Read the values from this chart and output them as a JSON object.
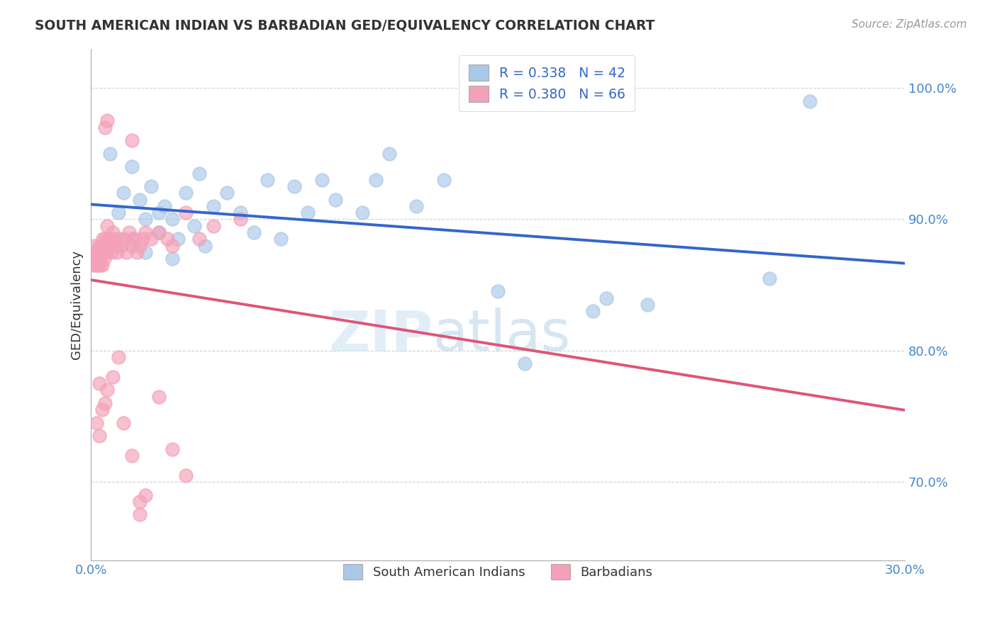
{
  "title": "SOUTH AMERICAN INDIAN VS BARBADIAN GED/EQUIVALENCY CORRELATION CHART",
  "source": "Source: ZipAtlas.com",
  "ylabel": "GED/Equivalency",
  "xlim": [
    0.0,
    30.0
  ],
  "ylim": [
    64.0,
    103.0
  ],
  "xtick_positions": [
    0.0,
    10.0,
    20.0,
    30.0
  ],
  "xtick_labels": [
    "0.0%",
    "",
    "",
    "30.0%"
  ],
  "ytick_positions": [
    70.0,
    80.0,
    90.0,
    100.0
  ],
  "ytick_labels": [
    "70.0%",
    "80.0%",
    "90.0%",
    "100.0%"
  ],
  "legend_line1": "R = 0.338   N = 42",
  "legend_line2": "R = 0.380   N = 66",
  "legend_label_blue": "South American Indians",
  "legend_label_pink": "Barbadians",
  "blue_color": "#aac8e8",
  "pink_color": "#f4a0b8",
  "blue_line_color": "#3366cc",
  "pink_line_color": "#dd5577",
  "watermark_zip": "ZIP",
  "watermark_atlas": "atlas",
  "blue_scatter_x": [
    0.3,
    0.7,
    1.2,
    1.5,
    1.8,
    2.0,
    2.2,
    2.5,
    2.7,
    3.0,
    3.2,
    3.5,
    3.8,
    4.0,
    4.2,
    4.5,
    5.0,
    5.5,
    6.0,
    6.5,
    7.0,
    7.5,
    8.0,
    8.5,
    9.0,
    10.0,
    10.5,
    11.0,
    12.0,
    13.0,
    2.0,
    2.5,
    3.0,
    1.0,
    1.5,
    15.0,
    16.0,
    18.5,
    19.0,
    20.5,
    25.0,
    26.5
  ],
  "blue_scatter_y": [
    88.0,
    95.0,
    92.0,
    94.0,
    91.5,
    90.0,
    92.5,
    90.5,
    91.0,
    90.0,
    88.5,
    92.0,
    89.5,
    93.5,
    88.0,
    91.0,
    92.0,
    90.5,
    89.0,
    93.0,
    88.5,
    92.5,
    90.5,
    93.0,
    91.5,
    90.5,
    93.0,
    95.0,
    91.0,
    93.0,
    87.5,
    89.0,
    87.0,
    90.5,
    88.5,
    84.5,
    79.0,
    83.0,
    84.0,
    83.5,
    85.5,
    99.0
  ],
  "pink_scatter_x": [
    0.05,
    0.08,
    0.1,
    0.12,
    0.15,
    0.18,
    0.2,
    0.22,
    0.25,
    0.28,
    0.3,
    0.32,
    0.35,
    0.38,
    0.4,
    0.42,
    0.45,
    0.48,
    0.5,
    0.55,
    0.6,
    0.65,
    0.7,
    0.75,
    0.8,
    0.85,
    0.9,
    0.95,
    1.0,
    1.1,
    1.2,
    1.3,
    1.4,
    1.5,
    1.6,
    1.7,
    1.8,
    1.9,
    2.0,
    2.2,
    2.5,
    2.8,
    3.0,
    3.5,
    4.0,
    4.5,
    0.5,
    0.6,
    1.5,
    5.5,
    0.2,
    0.3,
    0.4,
    0.6,
    0.8,
    1.0,
    1.2,
    1.5,
    1.8,
    2.0,
    2.5,
    3.0,
    3.5,
    0.3,
    0.5,
    1.8
  ],
  "pink_scatter_y": [
    87.5,
    87.0,
    86.5,
    88.0,
    87.0,
    86.5,
    87.5,
    87.0,
    86.5,
    87.5,
    87.0,
    86.5,
    88.0,
    87.5,
    86.5,
    88.5,
    87.5,
    87.0,
    88.5,
    87.5,
    89.5,
    88.5,
    88.0,
    87.5,
    89.0,
    88.5,
    88.0,
    87.5,
    88.5,
    88.0,
    88.5,
    87.5,
    89.0,
    88.0,
    88.5,
    87.5,
    88.0,
    88.5,
    89.0,
    88.5,
    89.0,
    88.5,
    88.0,
    90.5,
    88.5,
    89.5,
    97.0,
    97.5,
    96.0,
    90.0,
    74.5,
    73.5,
    75.5,
    77.0,
    78.0,
    79.5,
    74.5,
    72.0,
    68.5,
    69.0,
    76.5,
    72.5,
    70.5,
    77.5,
    76.0,
    67.5
  ]
}
